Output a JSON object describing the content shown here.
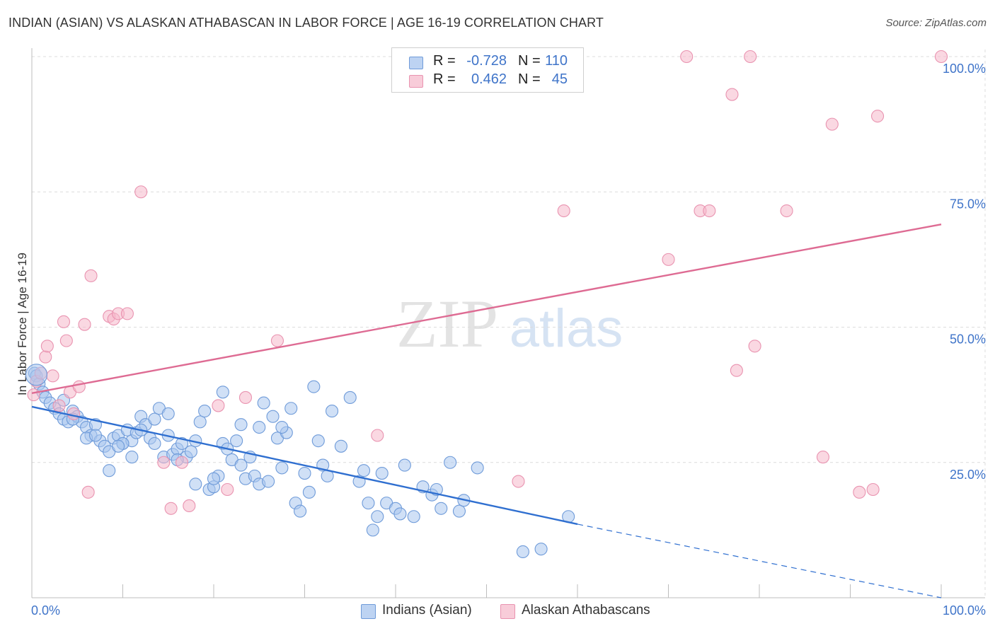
{
  "title": "INDIAN (ASIAN) VS ALASKAN ATHABASCAN IN LABOR FORCE | AGE 16-19 CORRELATION CHART",
  "source": "Source: ZipAtlas.com",
  "watermark": {
    "zip": "ZIP",
    "atlas": "atlas"
  },
  "colors": {
    "blue_fill": "#a9c6ee",
    "blue_stroke": "#6f9bd9",
    "blue_line": "#2f6fd0",
    "pink_fill": "#f5b8cb",
    "pink_stroke": "#e993b0",
    "pink_line": "#de6b93",
    "axis_label": "#3f74c9"
  },
  "legend": {
    "rows": [
      {
        "r_label": "R =",
        "r_value": "-0.728",
        "n_label": "N =",
        "n_value": "110"
      },
      {
        "r_label": "R =",
        "r_value": "0.462",
        "n_label": "N =",
        "n_value": "45"
      }
    ]
  },
  "bottom_legend": [
    "Indians (Asian)",
    "Alaskan Athabascans"
  ],
  "chart_data": {
    "type": "scatter",
    "title": "INDIAN (ASIAN) VS ALASKAN ATHABASCAN IN LABOR FORCE | AGE 16-19 CORRELATION CHART",
    "xlabel": "",
    "ylabel": "In Labor Force | Age 16-19",
    "xlim": [
      0,
      100
    ],
    "ylim": [
      0,
      105
    ],
    "x_tick_labels": [
      "0.0%",
      "100.0%"
    ],
    "y_tick_labels": [
      "25.0%",
      "50.0%",
      "75.0%",
      "100.0%"
    ],
    "y_ticks": [
      25,
      50,
      75,
      100
    ],
    "grid": true,
    "legend_position": "top-center",
    "series": [
      {
        "name": "Indians (Asian)",
        "R": -0.728,
        "N": 110,
        "trend": {
          "x": [
            0,
            60
          ],
          "y": [
            35.3,
            13.6
          ],
          "dashed_to": [
            100,
            0
          ]
        },
        "points": [
          [
            0.3,
            41.5
          ],
          [
            0.5,
            41.0
          ],
          [
            0.8,
            39.5
          ],
          [
            1.2,
            38.0
          ],
          [
            1.5,
            37.0
          ],
          [
            2.0,
            36.0
          ],
          [
            2.5,
            35.0
          ],
          [
            3.0,
            34.0
          ],
          [
            3.5,
            33.0
          ],
          [
            4.0,
            32.5
          ],
          [
            4.5,
            34.5
          ],
          [
            5.0,
            33.5
          ],
          [
            5.5,
            32.5
          ],
          [
            6.0,
            31.5
          ],
          [
            6.5,
            30.0
          ],
          [
            7.0,
            32.0
          ],
          [
            7.5,
            29.0
          ],
          [
            8.0,
            28.0
          ],
          [
            8.5,
            27.0
          ],
          [
            9.0,
            29.5
          ],
          [
            9.5,
            30.0
          ],
          [
            10.0,
            28.5
          ],
          [
            10.5,
            31.0
          ],
          [
            11.0,
            29.0
          ],
          [
            11.5,
            30.5
          ],
          [
            12.0,
            33.5
          ],
          [
            12.5,
            32.0
          ],
          [
            13.0,
            29.5
          ],
          [
            13.5,
            33.0
          ],
          [
            14.0,
            35.0
          ],
          [
            14.5,
            26.0
          ],
          [
            15.0,
            30.0
          ],
          [
            15.5,
            26.5
          ],
          [
            16.0,
            27.5
          ],
          [
            16.5,
            28.5
          ],
          [
            17.0,
            26.0
          ],
          [
            17.5,
            27.0
          ],
          [
            18.0,
            29.0
          ],
          [
            18.5,
            32.5
          ],
          [
            19.0,
            34.5
          ],
          [
            19.5,
            20.0
          ],
          [
            20.0,
            20.5
          ],
          [
            20.5,
            22.5
          ],
          [
            21.0,
            28.5
          ],
          [
            21.5,
            27.5
          ],
          [
            22.0,
            25.5
          ],
          [
            22.5,
            29.0
          ],
          [
            23.0,
            24.5
          ],
          [
            23.5,
            22.0
          ],
          [
            24.0,
            26.0
          ],
          [
            24.5,
            22.5
          ],
          [
            25.0,
            21.0
          ],
          [
            25.5,
            36.0
          ],
          [
            26.0,
            21.5
          ],
          [
            26.5,
            33.5
          ],
          [
            27.0,
            29.5
          ],
          [
            27.5,
            24.0
          ],
          [
            28.0,
            30.5
          ],
          [
            28.5,
            35.0
          ],
          [
            29.0,
            17.5
          ],
          [
            29.5,
            16.0
          ],
          [
            30.0,
            23.0
          ],
          [
            30.5,
            19.5
          ],
          [
            31.0,
            39.0
          ],
          [
            31.5,
            29.0
          ],
          [
            32.0,
            24.5
          ],
          [
            32.5,
            22.5
          ],
          [
            33.0,
            34.5
          ],
          [
            34.0,
            28.0
          ],
          [
            35.0,
            37.0
          ],
          [
            36.0,
            21.5
          ],
          [
            36.5,
            23.5
          ],
          [
            37.0,
            17.5
          ],
          [
            37.5,
            12.5
          ],
          [
            38.0,
            15.0
          ],
          [
            38.5,
            23.0
          ],
          [
            39.0,
            17.5
          ],
          [
            40.0,
            16.5
          ],
          [
            40.5,
            15.5
          ],
          [
            41.0,
            24.5
          ],
          [
            42.0,
            15.0
          ],
          [
            43.0,
            20.5
          ],
          [
            44.0,
            19.0
          ],
          [
            44.5,
            20.0
          ],
          [
            45.0,
            16.5
          ],
          [
            46.0,
            25.0
          ],
          [
            47.0,
            16.0
          ],
          [
            47.5,
            18.0
          ],
          [
            49.0,
            24.0
          ],
          [
            54.0,
            8.5
          ],
          [
            56.0,
            9.0
          ],
          [
            59.0,
            15.0
          ],
          [
            8.5,
            23.5
          ],
          [
            10.0,
            28.5
          ],
          [
            12.0,
            31.0
          ],
          [
            13.5,
            28.5
          ],
          [
            15.0,
            34.0
          ],
          [
            21.0,
            38.0
          ],
          [
            23.0,
            32.0
          ],
          [
            25.0,
            31.5
          ],
          [
            27.5,
            31.5
          ],
          [
            3.5,
            36.5
          ],
          [
            4.5,
            33.0
          ],
          [
            6.0,
            29.5
          ],
          [
            7.0,
            30.0
          ],
          [
            9.5,
            28.0
          ],
          [
            11.0,
            26.0
          ],
          [
            16.0,
            25.5
          ],
          [
            18.0,
            21.0
          ],
          [
            20.0,
            22.0
          ]
        ]
      },
      {
        "name": "Alaskan Athabascans",
        "R": 0.462,
        "N": 45,
        "trend": {
          "x": [
            0,
            100
          ],
          "y": [
            37.8,
            69.0
          ]
        },
        "points": [
          [
            0.2,
            37.5
          ],
          [
            0.5,
            40.0
          ],
          [
            1.0,
            41.5
          ],
          [
            1.5,
            44.5
          ],
          [
            1.7,
            46.5
          ],
          [
            2.3,
            41.0
          ],
          [
            3.0,
            35.5
          ],
          [
            3.5,
            51.0
          ],
          [
            3.8,
            47.5
          ],
          [
            4.2,
            38.0
          ],
          [
            4.6,
            34.0
          ],
          [
            5.2,
            39.0
          ],
          [
            5.8,
            50.5
          ],
          [
            6.2,
            19.5
          ],
          [
            6.5,
            59.5
          ],
          [
            8.5,
            52.0
          ],
          [
            9.0,
            51.5
          ],
          [
            9.5,
            52.5
          ],
          [
            10.5,
            52.5
          ],
          [
            12.0,
            75.0
          ],
          [
            14.5,
            25.0
          ],
          [
            15.3,
            16.5
          ],
          [
            16.5,
            25.0
          ],
          [
            17.3,
            17.0
          ],
          [
            20.5,
            35.5
          ],
          [
            21.5,
            20.0
          ],
          [
            23.5,
            37.0
          ],
          [
            27.0,
            47.5
          ],
          [
            38.0,
            30.0
          ],
          [
            53.5,
            21.5
          ],
          [
            58.5,
            71.5
          ],
          [
            70.0,
            62.5
          ],
          [
            72.0,
            100.0
          ],
          [
            73.5,
            71.5
          ],
          [
            74.5,
            71.5
          ],
          [
            77.0,
            93.0
          ],
          [
            77.5,
            42.0
          ],
          [
            79.0,
            100.0
          ],
          [
            79.5,
            46.5
          ],
          [
            83.0,
            71.5
          ],
          [
            87.0,
            26.0
          ],
          [
            88.0,
            87.5
          ],
          [
            91.0,
            19.5
          ],
          [
            92.5,
            20.0
          ],
          [
            93.0,
            89.0
          ]
        ],
        "extra_points": [
          [
            100.0,
            100.0
          ]
        ]
      }
    ]
  }
}
